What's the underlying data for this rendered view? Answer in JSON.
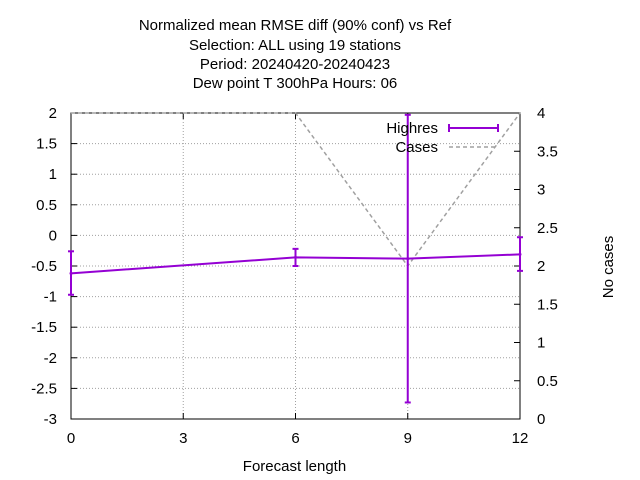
{
  "chart_data": {
    "type": "line",
    "title": [
      "Normalized mean RMSE diff (90% conf) vs Ref",
      "Selection: ALL using    19 stations",
      "Period: 20240420-20240423",
      "Dew point T 300hPa   Hours:  06"
    ],
    "xlabel": "Forecast length",
    "ylabel": "",
    "y2label": "No cases",
    "xlim": [
      0,
      12
    ],
    "ylim": [
      -3,
      2
    ],
    "y2lim": [
      0,
      4
    ],
    "xticks": [
      0,
      3,
      6,
      9,
      12
    ],
    "yticks": [
      2,
      1.5,
      1,
      0.5,
      0,
      -0.5,
      -1,
      -1.5,
      -2,
      -2.5,
      -3
    ],
    "y2ticks": [
      4,
      3.5,
      3,
      2.5,
      2,
      1.5,
      1,
      0.5,
      0
    ],
    "grid": true,
    "legend_position": "top-right",
    "series": [
      {
        "name": "Highres",
        "axis": "y1",
        "color": "#9400d3",
        "style": "errorbars",
        "x": [
          0,
          6,
          9,
          12
        ],
        "y": [
          -0.62,
          -0.36,
          -0.38,
          -0.31
        ],
        "ylow": [
          -0.97,
          -0.5,
          -2.73,
          -0.58
        ],
        "yhigh": [
          -0.26,
          -0.22,
          1.97,
          -0.03
        ]
      },
      {
        "name": "Cases",
        "axis": "y2",
        "color": "#a0a0a0",
        "style": "dashed",
        "x": [
          0,
          6,
          9,
          12
        ],
        "y": [
          4,
          4,
          2,
          4
        ]
      }
    ]
  }
}
